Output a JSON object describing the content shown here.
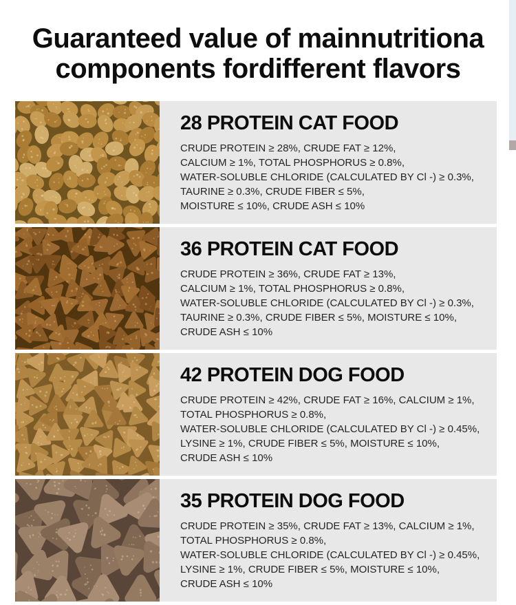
{
  "page": {
    "title_line1": "Guaranteed value of mainnutritiona",
    "title_line2": "components fordifferent flavors"
  },
  "colors": {
    "page_bg": "#ffffff",
    "panel_bg": "#e8e8e8",
    "heading_text": "#0d0d0d",
    "body_text": "#242424"
  },
  "scrollbar": {
    "track_color": "#e9eef5",
    "thumb_color": "#b3a8a8"
  },
  "sections": [
    {
      "heading": "28 PROTEIN CAT FOOD",
      "lines": [
        "CRUDE PROTEIN ≥ 28%, CRUDE FAT ≥ 12%,",
        "CALCIUM ≥ 1%, TOTAL PHOSPHORUS ≥ 0.8%,",
        "WATER-SOLUBLE CHLORIDE (CALCULATED BY Cl -) ≥ 0.3%,",
        "TAURINE ≥ 0.3%, CRUDE FIBER ≤ 5%,",
        "MOISTURE ≤ 10%, CRUDE ASH ≤ 10%"
      ],
      "image": {
        "name": "round-tan-kibble-photo",
        "shape": "oval",
        "size": 27,
        "gap_color": "#6f5420",
        "palette": [
          "#c69c55",
          "#b98c42",
          "#d2ae6c",
          "#aa7c34",
          "#c3964c"
        ],
        "speckle_color": "#ecd8a4"
      }
    },
    {
      "heading": "36 PROTEIN CAT FOOD",
      "lines": [
        "CRUDE PROTEIN ≥ 36%, CRUDE FAT ≥ 13%,",
        "CALCIUM ≥ 1%, TOTAL PHOSPHORUS ≥ 0.8%,",
        "WATER-SOLUBLE CHLORIDE (CALCULATED BY Cl -) ≥ 0.3%,",
        "TAURINE ≥ 0.3%, CRUDE FIBER ≤ 5%, MOISTURE ≤ 10%,",
        "CRUDE ASH ≤ 10%"
      ],
      "image": {
        "name": "dark-brown-triangle-kibble-photo",
        "shape": "triangle",
        "size": 27,
        "gap_color": "#50350f",
        "palette": [
          "#95622a",
          "#8a5a26",
          "#a16d30",
          "#7d4f1e",
          "#9a6830"
        ],
        "speckle_color": "#d9b478"
      }
    },
    {
      "heading": "42 PROTEIN DOG FOOD",
      "lines": [
        "CRUDE PROTEIN ≥ 42%, CRUDE FAT ≥ 16%, CALCIUM ≥ 1%,",
        "TOTAL PHOSPHORUS ≥ 0.8%,",
        "WATER-SOLUBLE CHLORIDE (CALCULATED BY Cl -) ≥ 0.45%,",
        "LYSINE ≥ 1%, CRUDE FIBER ≤ 5%, MOISTURE ≤ 10%,",
        "CRUDE ASH ≤ 10%"
      ],
      "image": {
        "name": "tan-triangle-kibble-photo",
        "shape": "triangle",
        "size": 28,
        "gap_color": "#7e5c28",
        "palette": [
          "#bd9150",
          "#b08544",
          "#c89d5e",
          "#a5783a",
          "#b68b48"
        ],
        "speckle_color": "#eed6a2"
      }
    },
    {
      "heading": "35 PROTEIN DOG FOOD",
      "lines": [
        "CRUDE PROTEIN ≥ 35%, CRUDE FAT ≥ 13%, CALCIUM ≥ 1%,",
        "TOTAL PHOSPHORUS ≥ 0.8%,",
        "WATER-SOLUBLE CHLORIDE (CALCULATED BY Cl -) ≥ 0.45%,",
        "LYSINE ≥ 1%, CRUDE FIBER ≤ 5%, MOISTURE ≤ 10%,",
        "CRUDE ASH ≤ 10%"
      ],
      "image": {
        "name": "gray-brown-chunk-kibble-photo",
        "shape": "chunk",
        "size": 45,
        "gap_color": "#5a4639",
        "palette": [
          "#9c8169",
          "#8e735e",
          "#a88d74",
          "#806751",
          "#957a62"
        ],
        "speckle_color": "#d8c8a2"
      }
    }
  ]
}
